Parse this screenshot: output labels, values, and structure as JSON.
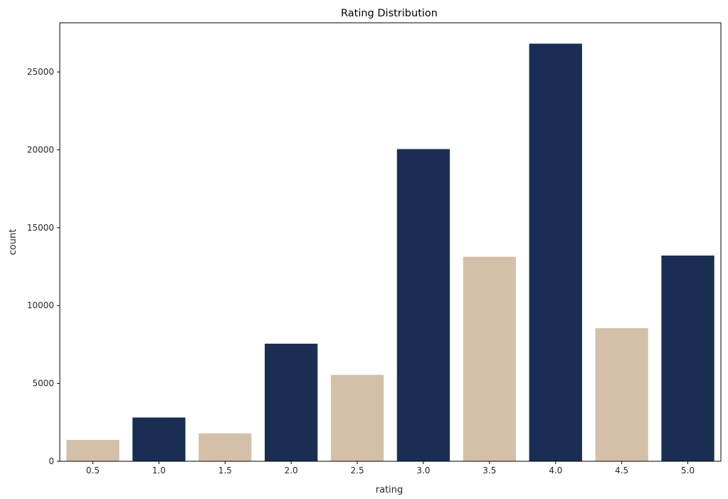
{
  "chart_data": {
    "type": "bar",
    "title": "Rating Distribution",
    "xlabel": "rating",
    "ylabel": "count",
    "categories": [
      "0.5",
      "1.0",
      "1.5",
      "2.0",
      "2.5",
      "3.0",
      "3.5",
      "4.0",
      "4.5",
      "5.0"
    ],
    "values": [
      1370,
      2811,
      1791,
      7551,
      5550,
      20047,
      13136,
      26818,
      8551,
      13211
    ],
    "bar_colors": [
      "#d4c0a8",
      "#1a2e53",
      "#d4c0a8",
      "#1a2e53",
      "#d4c0a8",
      "#1a2e53",
      "#d4c0a8",
      "#1a2e53",
      "#d4c0a8",
      "#1a2e53"
    ],
    "ylim": [
      0,
      28159
    ],
    "yticks": [
      0,
      5000,
      10000,
      15000,
      20000,
      25000
    ],
    "ytick_labels": [
      "0",
      "5000",
      "10000",
      "15000",
      "20000",
      "25000"
    ],
    "grid": false,
    "legend": "none"
  }
}
